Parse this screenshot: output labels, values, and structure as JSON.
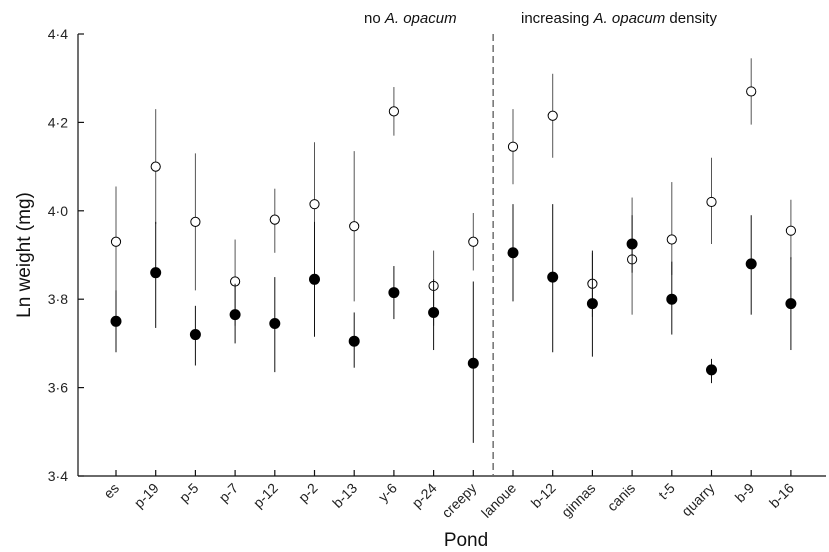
{
  "chart_data": {
    "type": "scatter",
    "xlabel": "Pond",
    "ylabel": "Ln weight (mg)",
    "ylim": [
      3.4,
      4.4
    ],
    "yticks": [
      "3·4",
      "3·6",
      "3·8",
      "4·0",
      "4·2",
      "4·4"
    ],
    "categories": [
      "es",
      "p-19",
      "p-5",
      "p-7",
      "p-12",
      "p-2",
      "b-13",
      "y-6",
      "p-24",
      "creepy",
      "lanoue",
      "b-12",
      "ginnas",
      "canis",
      "t-5",
      "quarry",
      "b-9",
      "b-16"
    ],
    "group_labels": {
      "left_prefix": "no ",
      "left_italic": "A. opacum",
      "right_prefix": "increasing ",
      "right_italic": "A. opacum",
      "right_suffix": " density"
    },
    "divider_after_category": "creepy",
    "grid": false,
    "series": [
      {
        "marker": "open-circle",
        "values": [
          3.93,
          4.1,
          3.975,
          3.84,
          3.98,
          4.015,
          3.965,
          4.225,
          3.83,
          3.93,
          4.145,
          4.215,
          3.835,
          3.89,
          3.935,
          4.02,
          4.27,
          3.955
        ],
        "lower": [
          3.81,
          3.97,
          3.82,
          3.74,
          3.905,
          3.88,
          3.795,
          4.17,
          3.74,
          3.865,
          4.06,
          4.12,
          3.76,
          3.765,
          3.855,
          3.925,
          4.195,
          3.89
        ],
        "upper": [
          4.055,
          4.23,
          4.13,
          3.935,
          4.05,
          4.155,
          4.135,
          4.28,
          3.91,
          3.995,
          4.23,
          4.31,
          3.905,
          4.03,
          4.065,
          4.12,
          4.345,
          4.025
        ]
      },
      {
        "marker": "filled-circle",
        "values": [
          3.75,
          3.86,
          3.72,
          3.765,
          3.745,
          3.845,
          3.705,
          3.815,
          3.77,
          3.655,
          3.905,
          3.85,
          3.79,
          3.925,
          3.8,
          3.64,
          3.88,
          3.79
        ],
        "lower": [
          3.68,
          3.735,
          3.65,
          3.7,
          3.635,
          3.715,
          3.645,
          3.755,
          3.685,
          3.475,
          3.795,
          3.68,
          3.67,
          3.86,
          3.72,
          3.61,
          3.765,
          3.685
        ],
        "upper": [
          3.82,
          3.975,
          3.785,
          3.835,
          3.85,
          3.975,
          3.77,
          3.875,
          3.845,
          3.84,
          4.015,
          4.015,
          3.91,
          3.99,
          3.885,
          3.665,
          3.99,
          3.895
        ]
      }
    ]
  }
}
